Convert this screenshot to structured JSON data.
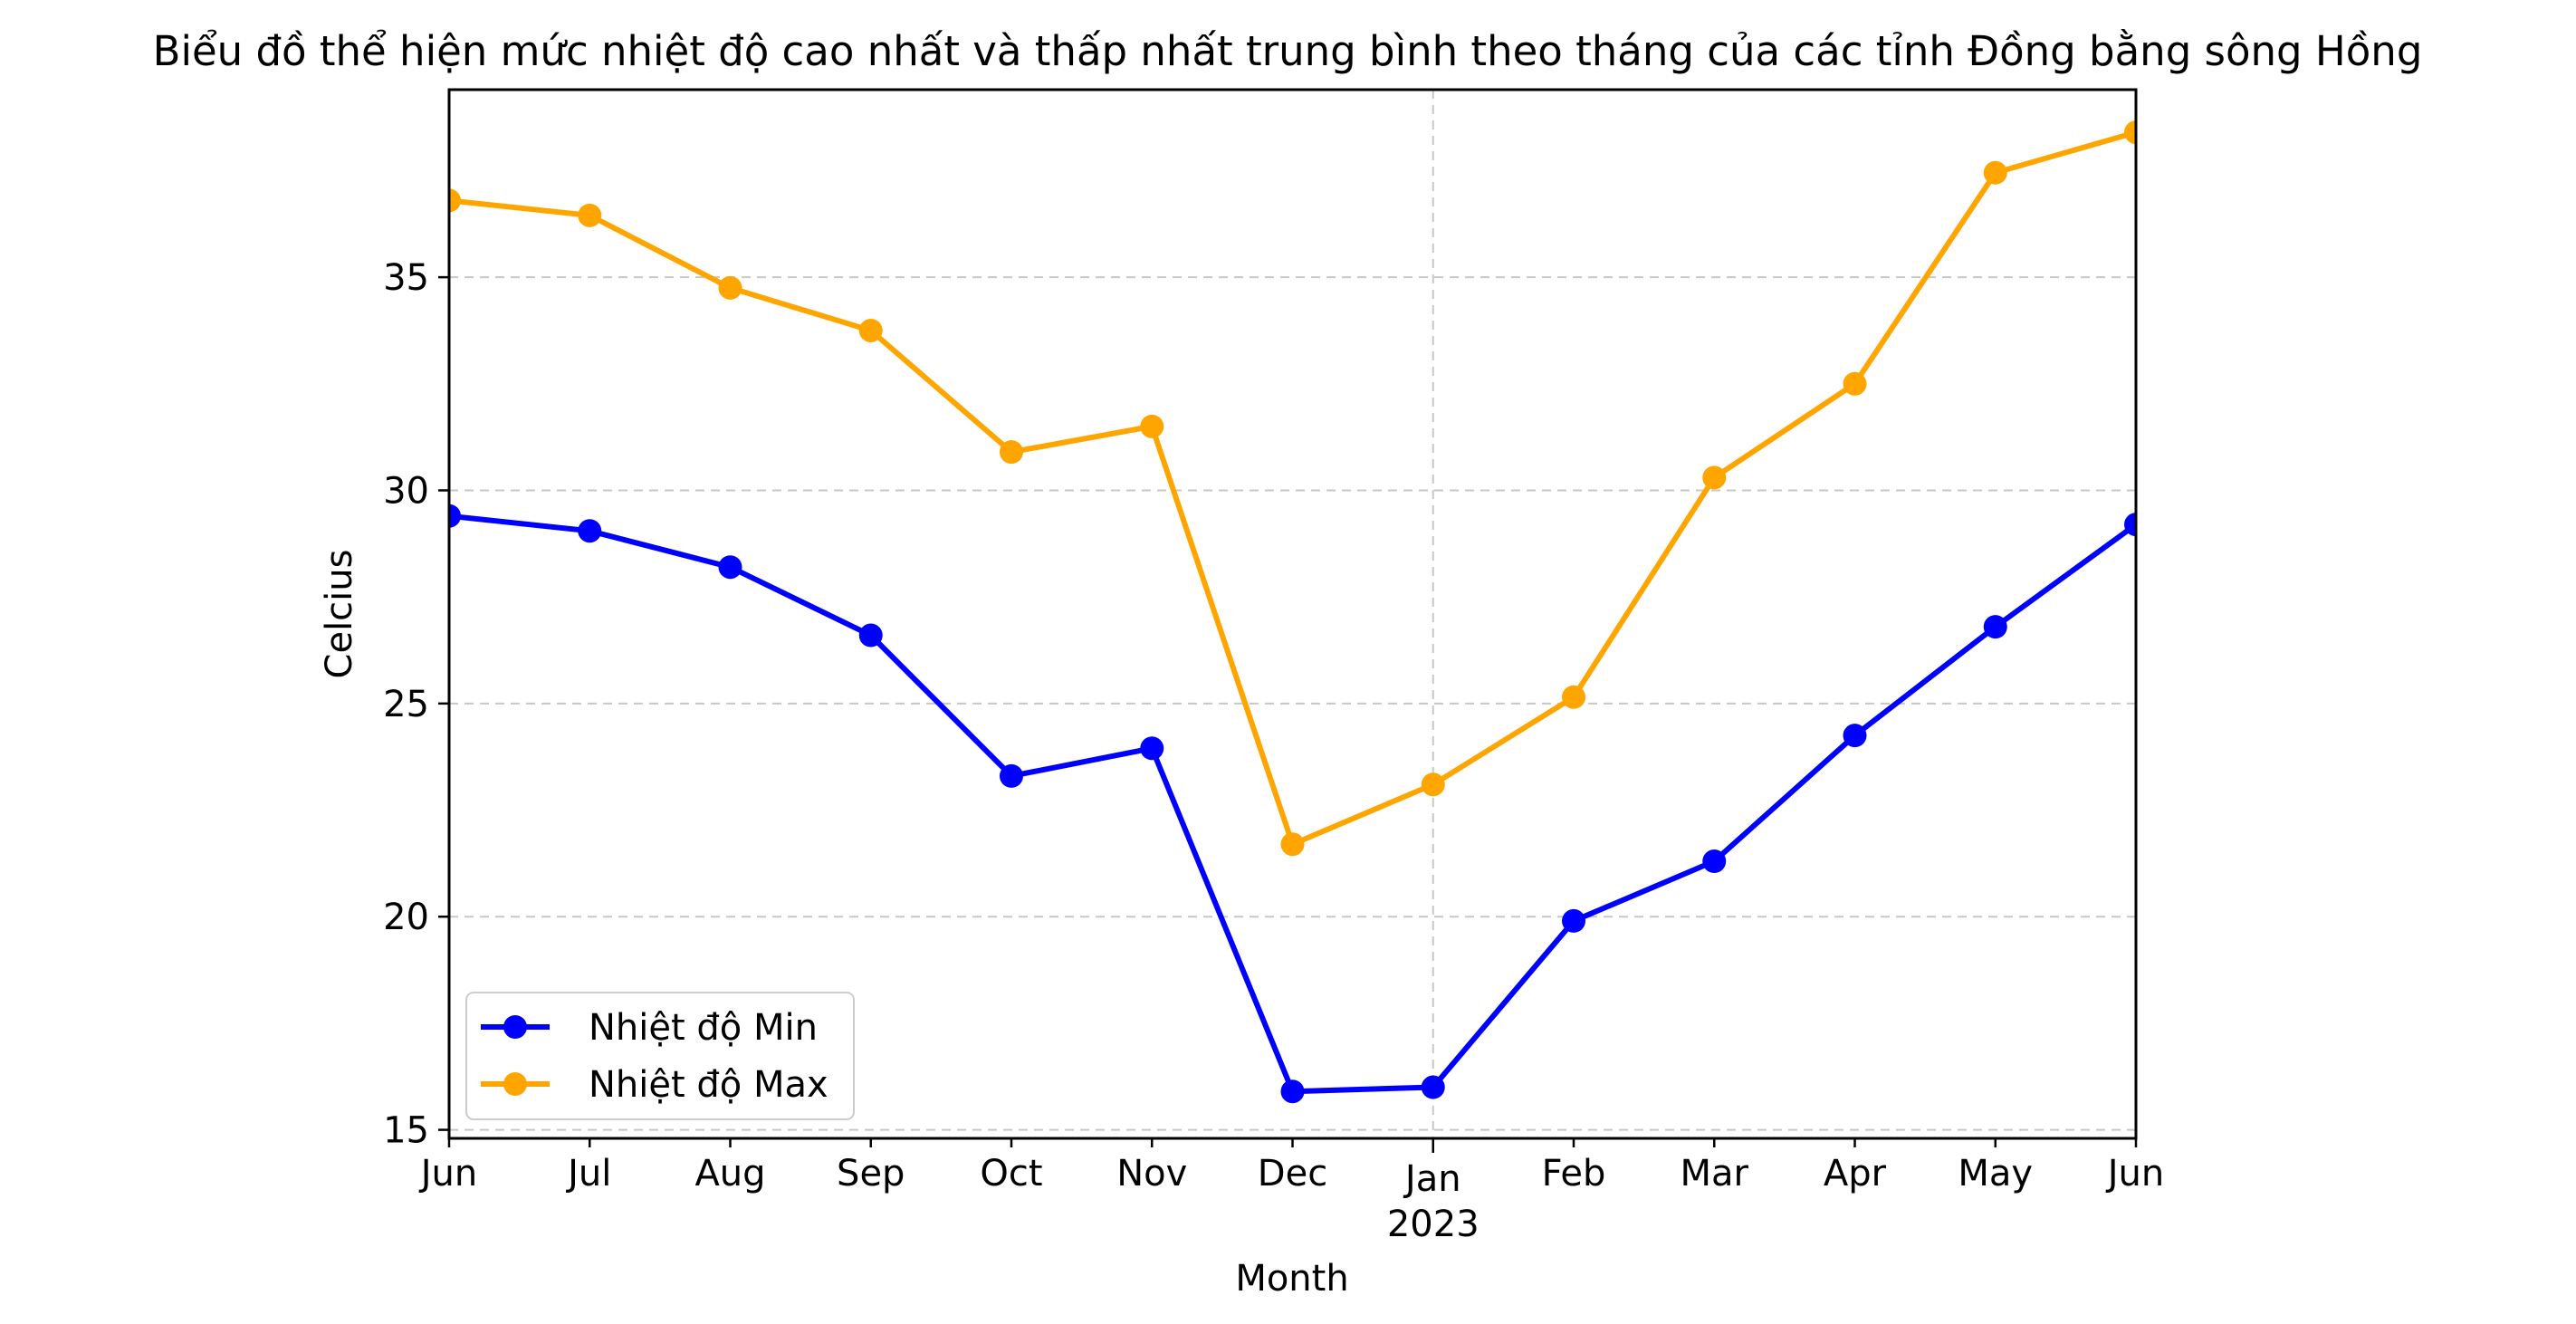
{
  "chart_data": {
    "type": "line",
    "title": "Biểu đồ thể hiện mức nhiệt độ cao nhất và thấp nhất trung bình theo tháng của các tỉnh Đồng bằng sông Hồng",
    "xlabel": "Month",
    "ylabel": "Celcius",
    "x_tick_labels": [
      "Jun",
      "Jul",
      "Aug",
      "Sep",
      "Oct",
      "Nov",
      "Dec",
      "Jan",
      "Feb",
      "Mar",
      "Apr",
      "May",
      "Jun"
    ],
    "x_year_label": "2023",
    "x": [
      "2022-06",
      "2022-07",
      "2022-08",
      "2022-09",
      "2022-10",
      "2022-11",
      "2022-12",
      "2023-01",
      "2023-02",
      "2023-03",
      "2023-04",
      "2023-05",
      "2023-06"
    ],
    "ylim": [
      14.8,
      39.4
    ],
    "yticks": [
      15,
      20,
      25,
      30,
      35
    ],
    "grid": true,
    "grid_style": "dashed",
    "legend_position": "lower-left",
    "series": [
      {
        "name": "Nhiệt độ Min",
        "color": "#0000ff",
        "values": [
          29.4,
          29.05,
          28.2,
          26.6,
          23.3,
          23.95,
          15.9,
          16.0,
          19.9,
          21.3,
          24.25,
          26.8,
          29.2
        ]
      },
      {
        "name": "Nhiệt độ Max",
        "color": "#ffa500",
        "values": [
          36.8,
          36.45,
          34.75,
          33.75,
          30.9,
          31.5,
          21.7,
          23.1,
          25.15,
          30.3,
          32.5,
          37.45,
          38.4
        ]
      }
    ]
  }
}
